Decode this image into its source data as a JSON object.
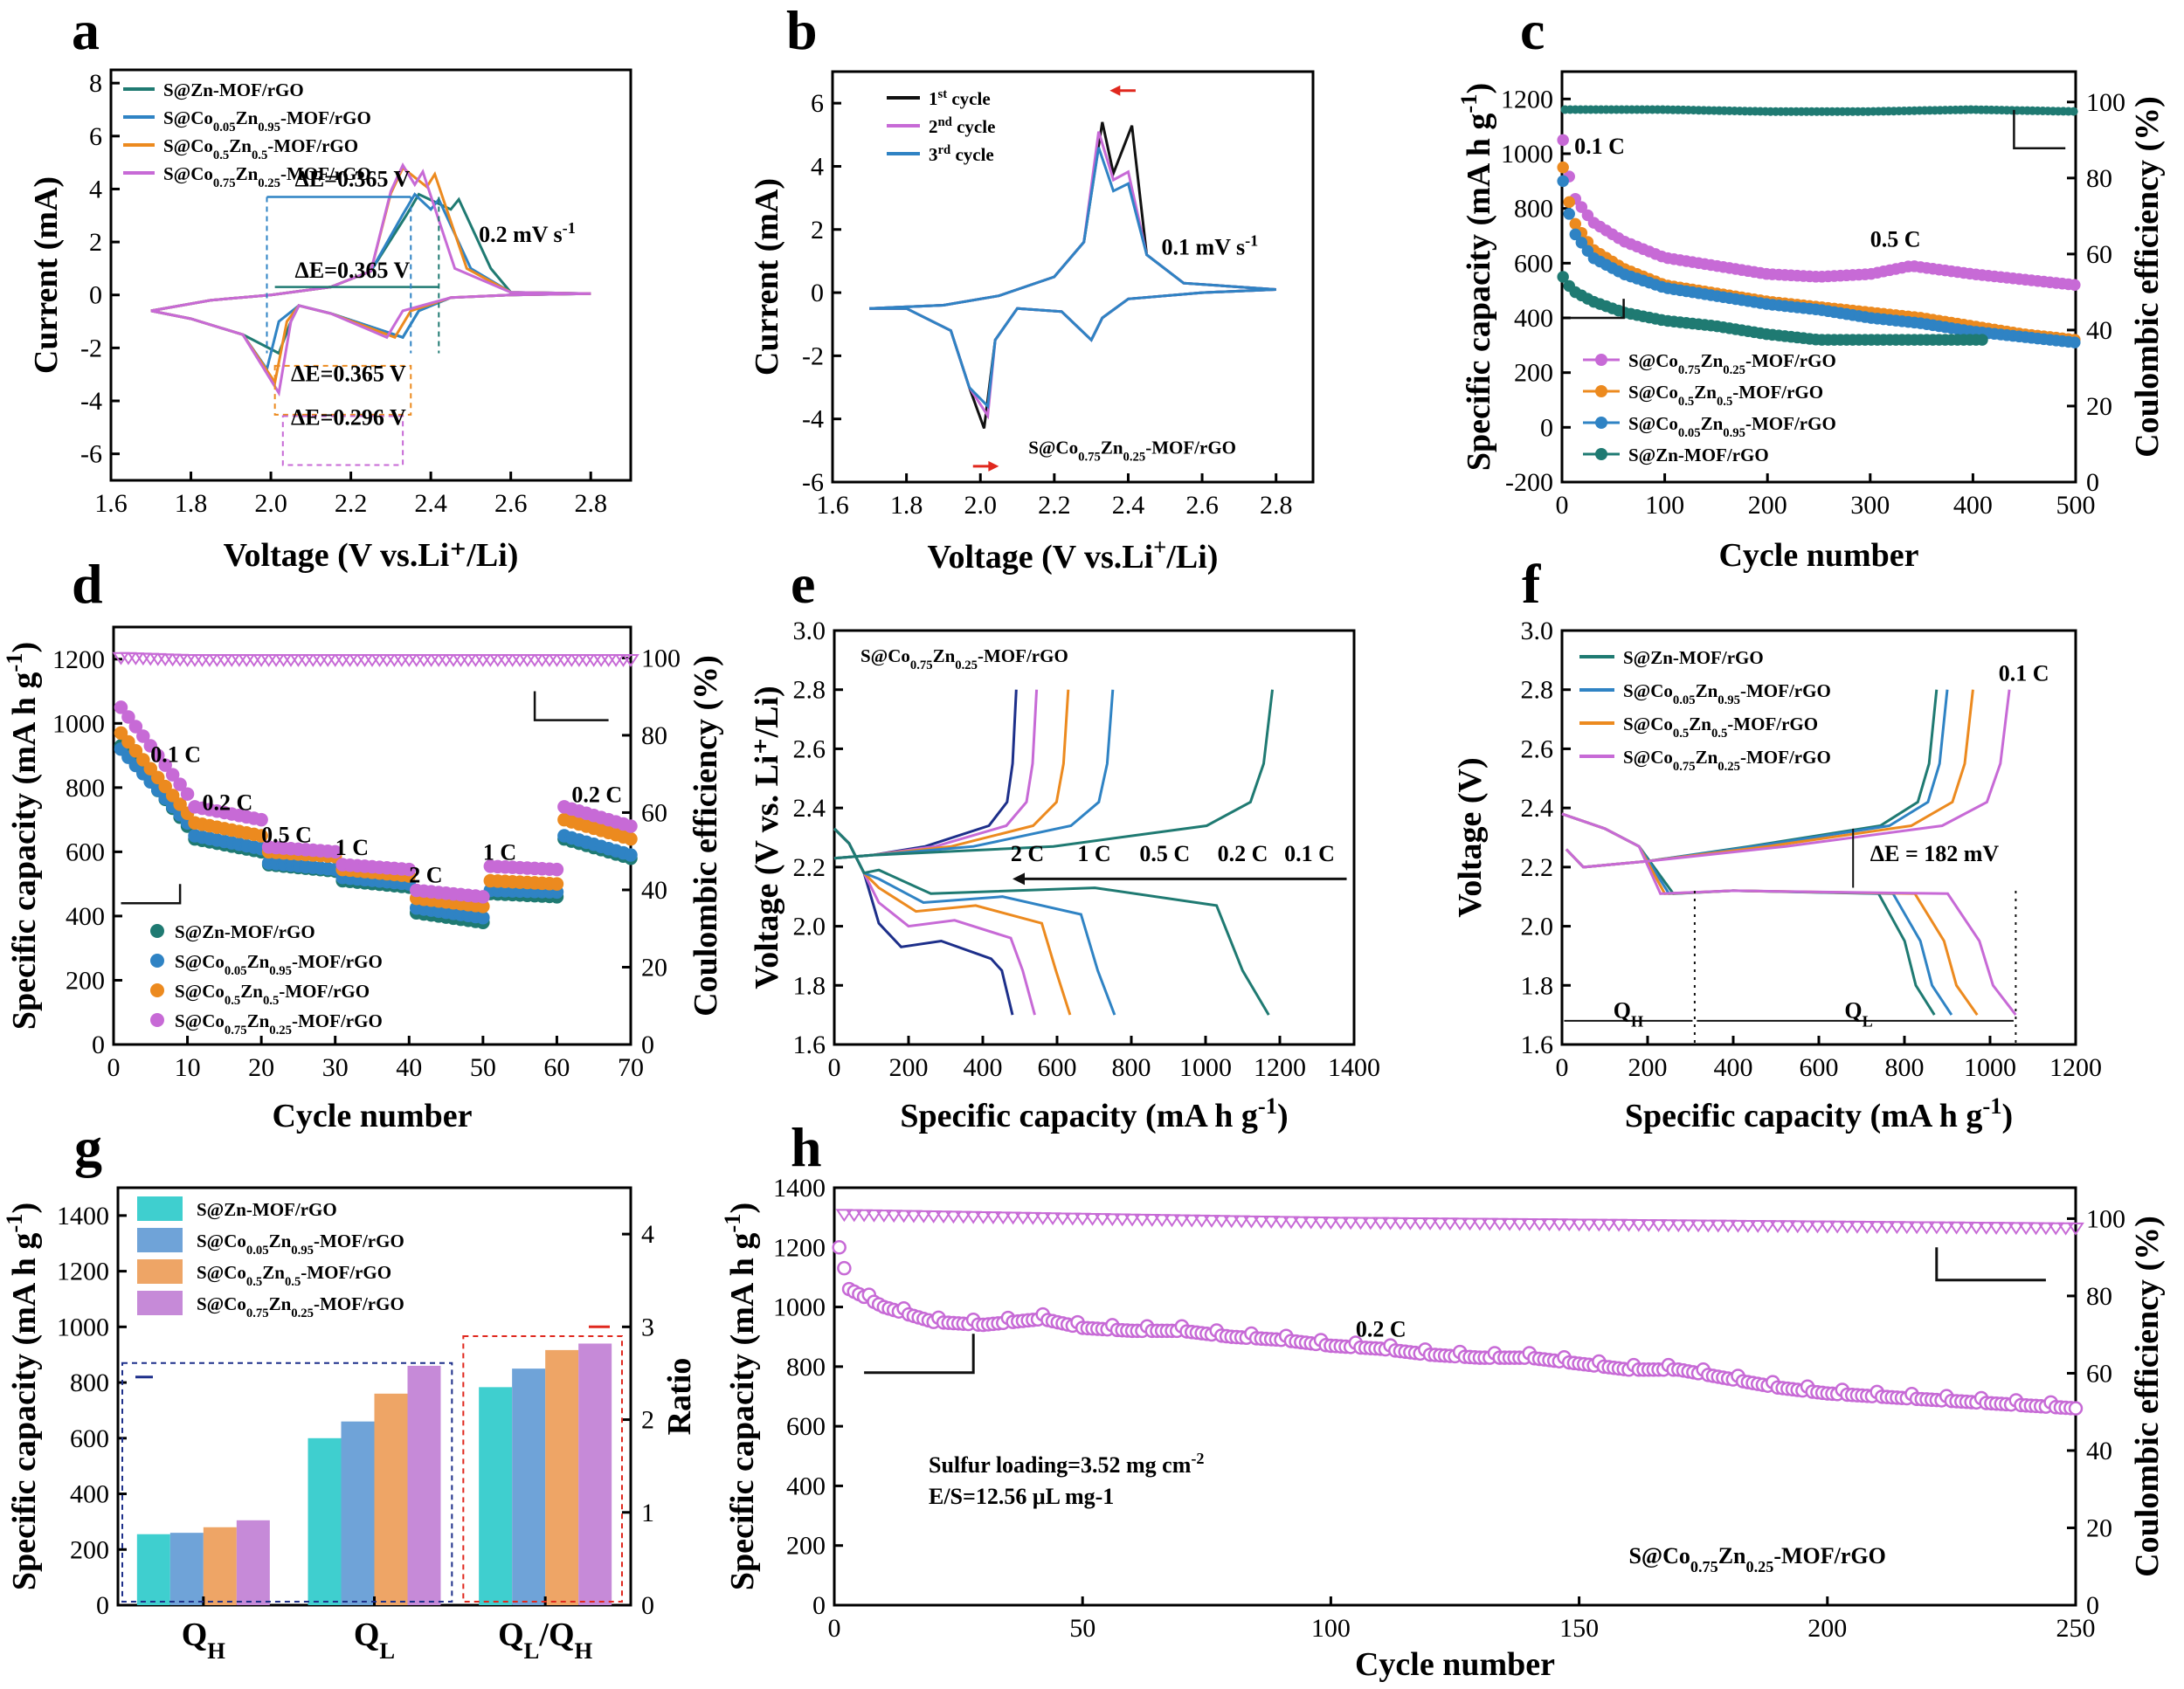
{
  "colors": {
    "zn": "#1f7a72",
    "co005": "#2f83c4",
    "co05": "#ec8a1f",
    "co075": "#c76ad6",
    "black": "#111111",
    "red": "#e0281e",
    "navy": "#1d2f8a",
    "teal_bar": "#3fcfcf",
    "blue_bar": "#6fa3d8",
    "orange_bar": "#eea566",
    "purple_bar": "#c68ad8"
  },
  "chart_data": [
    {
      "id": "a",
      "type": "line",
      "title": "",
      "xlabel": "Voltage (V vs.Li⁺/Li)",
      "ylabel": "Current (mA)",
      "xlim": [
        1.6,
        2.9
      ],
      "ylim": [
        -7,
        8.5
      ],
      "xticks": [
        "1.6",
        "1.8",
        "2.0",
        "2.2",
        "2.4",
        "2.6",
        "2.8"
      ],
      "yticks": [
        "-6",
        "-4",
        "-2",
        "0",
        "2",
        "4",
        "6",
        "8"
      ],
      "legend": [
        "S@Zn-MOF/rGO",
        "S@Co0.05Zn0.95-MOF/rGO",
        "S@Co0.5Zn0.5-MOF/rGO",
        "S@Co0.75Zn0.25-MOF/rGO"
      ],
      "annotations": [
        "0.2 mV s-1",
        "ΔE=0.365 V",
        "ΔE=0.365 V",
        "ΔE=0.365 V",
        "ΔE=0.296 V"
      ],
      "series": [
        {
          "name": "S@Zn-MOF/rGO",
          "peaks": {
            "oxidation": [
              2.37,
              2.47
            ],
            "reduction": [
              2.33,
              2.02
            ],
            "ox_current": 3.8,
            "red_current": -2.2
          }
        },
        {
          "name": "S@Co0.05Zn0.95-MOF/rGO",
          "peaks": {
            "oxidation": [
              2.36,
              2.42
            ],
            "reduction": [
              2.33,
              1.99
            ],
            "ox_current": 3.8,
            "red_current": -2.8
          }
        },
        {
          "name": "S@Co0.5Zn0.5-MOF/rGO",
          "peaks": {
            "oxidation": [
              2.33,
              2.41
            ],
            "reduction": [
              2.31,
              2.01
            ],
            "ox_current": 4.8,
            "red_current": -3.3
          }
        },
        {
          "name": "S@Co0.75Zn0.25-MOF/rGO",
          "peaks": {
            "oxidation": [
              2.33,
              2.38
            ],
            "reduction": [
              2.29,
              2.02
            ],
            "ox_current": 4.9,
            "red_current": -3.7
          }
        }
      ]
    },
    {
      "id": "b",
      "type": "line",
      "xlabel": "Voltage (V vs.Li⁺/Li)",
      "ylabel": "Current (mA)",
      "xlim": [
        1.6,
        2.9
      ],
      "ylim": [
        -6,
        7
      ],
      "xticks": [
        "1.6",
        "1.8",
        "2.0",
        "2.2",
        "2.4",
        "2.6",
        "2.8"
      ],
      "yticks": [
        "-6",
        "-4",
        "-2",
        "0",
        "2",
        "4",
        "6"
      ],
      "legend": [
        "1st cycle",
        "2nd cycle",
        "3rd cycle"
      ],
      "annotations": [
        "0.1 mV s-1",
        "S@Co0.75Zn0.25-MOF/rGO"
      ],
      "series": [
        {
          "name": "1st cycle",
          "ox_peaks": [
            2.33,
            2.41
          ],
          "ox_current": 5.4,
          "red_peaks": [
            2.3,
            2.01
          ],
          "red_current": -4.3
        },
        {
          "name": "2nd cycle",
          "ox_peaks": [
            2.32,
            2.4
          ],
          "ox_current": 5.1,
          "red_peaks": [
            2.3,
            2.02
          ],
          "red_current": -3.9
        },
        {
          "name": "3rd cycle",
          "ox_peaks": [
            2.32,
            2.4
          ],
          "ox_current": 4.6,
          "red_peaks": [
            2.3,
            2.02
          ],
          "red_current": -3.6
        }
      ]
    },
    {
      "id": "c",
      "type": "scatter",
      "xlabel": "Cycle number",
      "ylabel": "Specific capacity (mA h g-1)",
      "y2label": "Coulombic efficiency (%)",
      "xlim": [
        0,
        500
      ],
      "ylim": [
        -200,
        1300
      ],
      "y2lim": [
        0,
        108
      ],
      "xticks": [
        "0",
        "100",
        "200",
        "300",
        "400",
        "500"
      ],
      "yticks": [
        "-200",
        "0",
        "200",
        "400",
        "600",
        "800",
        "1000",
        "1200"
      ],
      "y2ticks": [
        "0",
        "20",
        "40",
        "60",
        "80",
        "100"
      ],
      "annotations": [
        "0.1 C",
        "0.5 C"
      ],
      "legend": [
        "S@Co0.75Zn0.25-MOF/rGO",
        "S@Co0.5Zn0.5-MOF/rGO",
        "S@Co0.05Zn0.95-MOF/rGO",
        "S@Zn-MOF/rGO"
      ],
      "series": [
        {
          "name": "S@Co0.75Zn0.25-MOF/rGO",
          "x": [
            1,
            10,
            30,
            60,
            100,
            150,
            200,
            250,
            300,
            340,
            400,
            450,
            500
          ],
          "y": [
            1050,
            850,
            750,
            680,
            620,
            590,
            560,
            550,
            560,
            590,
            560,
            540,
            520
          ]
        },
        {
          "name": "S@Co0.5Zn0.5-MOF/rGO",
          "x": [
            1,
            10,
            30,
            60,
            100,
            150,
            200,
            250,
            300,
            350,
            400,
            450,
            500
          ],
          "y": [
            950,
            760,
            650,
            580,
            520,
            490,
            460,
            440,
            420,
            400,
            370,
            340,
            320
          ]
        },
        {
          "name": "S@Co0.05Zn0.95-MOF/rGO",
          "x": [
            1,
            10,
            30,
            60,
            100,
            150,
            200,
            250,
            300,
            350,
            400,
            450,
            500
          ],
          "y": [
            900,
            720,
            620,
            560,
            510,
            480,
            450,
            430,
            400,
            380,
            350,
            330,
            310
          ]
        },
        {
          "name": "S@Zn-MOF/rGO",
          "x": [
            1,
            10,
            30,
            60,
            100,
            150,
            200,
            250,
            300,
            350,
            410
          ],
          "y": [
            550,
            500,
            460,
            420,
            390,
            370,
            340,
            320,
            320,
            320,
            320
          ]
        }
      ],
      "ce": {
        "x": [
          5,
          100,
          200,
          300,
          400,
          500
        ],
        "y": [
          98,
          98,
          97.5,
          97.5,
          98,
          97.5
        ]
      }
    },
    {
      "id": "d",
      "type": "scatter",
      "xlabel": "Cycle number",
      "ylabel": "Specific capacity (mA h g-1)",
      "y2label": "Coulombic efficiency (%)",
      "xlim": [
        0,
        70
      ],
      "ylim": [
        0,
        1300
      ],
      "y2lim": [
        0,
        108
      ],
      "xticks": [
        "0",
        "10",
        "20",
        "30",
        "40",
        "50",
        "60",
        "70"
      ],
      "yticks": [
        "0",
        "200",
        "400",
        "600",
        "800",
        "1000",
        "1200"
      ],
      "y2ticks": [
        "0",
        "20",
        "40",
        "60",
        "80",
        "100"
      ],
      "rate_labels": [
        "0.1 C",
        "0.2 C",
        "0.5 C",
        "1 C",
        "2 C",
        "1 C",
        "0.2 C"
      ],
      "legend": [
        "S@Zn-MOF/rGO",
        "S@Co0.05Zn0.95-MOF/rGO",
        "S@Co0.5Zn0.5-MOF/rGO",
        "S@Co0.75Zn0.25-MOF/rGO"
      ],
      "series": [
        {
          "name": "S@Zn-MOF/rGO",
          "rates": [
            [
              930,
              680
            ],
            [
              640,
              600
            ],
            [
              560,
              540
            ],
            [
              510,
              490
            ],
            [
              410,
              380
            ],
            [
              470,
              460
            ],
            [
              640,
              580
            ]
          ]
        },
        {
          "name": "S@Co0.05Zn0.95-MOF/rGO",
          "rates": [
            [
              920,
              690
            ],
            [
              650,
              610
            ],
            [
              565,
              545
            ],
            [
              520,
              500
            ],
            [
              425,
              395
            ],
            [
              480,
              475
            ],
            [
              650,
              590
            ]
          ]
        },
        {
          "name": "S@Co0.5Zn0.5-MOF/rGO",
          "rates": [
            [
              970,
              720
            ],
            [
              690,
              650
            ],
            [
              600,
              585
            ],
            [
              545,
              525
            ],
            [
              455,
              430
            ],
            [
              510,
              500
            ],
            [
              700,
              640
            ]
          ]
        },
        {
          "name": "S@Co0.75Zn0.25-MOF/rGO",
          "rates": [
            [
              1050,
              780
            ],
            [
              740,
              700
            ],
            [
              615,
              600
            ],
            [
              560,
              545
            ],
            [
              480,
              460
            ],
            [
              555,
              545
            ],
            [
              740,
              680
            ]
          ]
        }
      ],
      "ce": {
        "x": [
          2,
          10,
          20,
          30,
          40,
          50,
          60,
          70
        ],
        "y": [
          100,
          99.5,
          99.5,
          99.5,
          99.5,
          99.5,
          99.5,
          99.5
        ]
      }
    },
    {
      "id": "e",
      "type": "line",
      "xlabel": "Specific capacity (mA h g-1)",
      "ylabel": "Voltage (V vs. Li⁺/Li)",
      "xlim": [
        0,
        1400
      ],
      "ylim": [
        1.6,
        3.0
      ],
      "xticks": [
        "0",
        "200",
        "400",
        "600",
        "800",
        "1000",
        "1200",
        "1400"
      ],
      "yticks": [
        "1.6",
        "1.8",
        "2.0",
        "2.2",
        "2.4",
        "2.6",
        "2.8",
        "3.0"
      ],
      "title": "S@Co0.75Zn0.25-MOF/rGO",
      "series": [
        {
          "name": "2 C",
          "discharge_end": 480,
          "charge_end": 490,
          "lower_plateau": 1.93
        },
        {
          "name": "1 C",
          "discharge_end": 540,
          "charge_end": 545,
          "lower_plateau": 2.0
        },
        {
          "name": "0.5 C",
          "discharge_end": 635,
          "charge_end": 630,
          "lower_plateau": 2.05
        },
        {
          "name": "0.2 C",
          "discharge_end": 755,
          "charge_end": 750,
          "lower_plateau": 2.08
        },
        {
          "name": "0.1 C",
          "discharge_end": 1170,
          "charge_end": 1180,
          "lower_plateau": 2.11
        }
      ]
    },
    {
      "id": "f",
      "type": "line",
      "xlabel": "Specific capacity (mA h g-1)",
      "ylabel": "Voltage (V)",
      "xlim": [
        0,
        1200
      ],
      "ylim": [
        1.6,
        3.0
      ],
      "xticks": [
        "0",
        "200",
        "400",
        "600",
        "800",
        "1000",
        "1200"
      ],
      "yticks": [
        "1.6",
        "1.8",
        "2.0",
        "2.2",
        "2.4",
        "2.6",
        "2.8",
        "3.0"
      ],
      "annotations": [
        "0.1 C",
        "ΔE = 182 mV",
        "QH",
        "QL"
      ],
      "legend": [
        "S@Zn-MOF/rGO",
        "S@Co0.05Zn0.95-MOF/rGO",
        "S@Co0.5Zn0.5-MOF/rGO",
        "S@Co0.75Zn0.25-MOF/rGO"
      ],
      "series": [
        {
          "name": "S@Zn-MOF/rGO",
          "discharge_end": 870,
          "charge_end": 875
        },
        {
          "name": "S@Co0.05Zn0.95-MOF/rGO",
          "discharge_end": 910,
          "charge_end": 900
        },
        {
          "name": "S@Co0.5Zn0.5-MOF/rGO",
          "discharge_end": 970,
          "charge_end": 960
        },
        {
          "name": "S@Co0.75Zn0.25-MOF/rGO",
          "discharge_end": 1060,
          "charge_end": 1045
        }
      ]
    },
    {
      "id": "g",
      "type": "bar",
      "xlabel": "",
      "ylabel": "Specific capacity (mA h g-1)",
      "y2label": "Ratio",
      "ylim": [
        0,
        1500
      ],
      "y2lim": [
        0,
        4.5
      ],
      "categories": [
        "QH",
        "QL",
        "QL/QH"
      ],
      "yticks": [
        "0",
        "200",
        "400",
        "600",
        "800",
        "1000",
        "1200",
        "1400"
      ],
      "y2ticks": [
        "0",
        "1",
        "2",
        "3",
        "4"
      ],
      "series": [
        {
          "name": "S@Zn-MOF/rGO",
          "values": [
            255,
            600,
            2.35
          ]
        },
        {
          "name": "S@Co0.05Zn0.95-MOF/rGO",
          "values": [
            260,
            660,
            2.55
          ]
        },
        {
          "name": "S@Co0.5Zn0.5-MOF/rGO",
          "values": [
            280,
            760,
            2.75
          ]
        },
        {
          "name": "S@Co0.75Zn0.25-MOF/rGO",
          "values": [
            305,
            860,
            2.82
          ]
        }
      ]
    },
    {
      "id": "h",
      "type": "scatter",
      "xlabel": "Cycle number",
      "ylabel": "Specific capacity (mA h g-1)",
      "y2label": "Coulombic efficiency (%)",
      "xlim": [
        0,
        250
      ],
      "ylim": [
        0,
        1400
      ],
      "y2lim": [
        0,
        108
      ],
      "xticks": [
        "0",
        "50",
        "100",
        "150",
        "200",
        "250"
      ],
      "yticks": [
        "0",
        "200",
        "400",
        "600",
        "800",
        "1000",
        "1200",
        "1400"
      ],
      "y2ticks": [
        "0",
        "20",
        "40",
        "60",
        "80",
        "100"
      ],
      "annotations": [
        "0.2 C",
        "Sulfur loading=3.52 mg cm-2",
        "E/S=12.56 μL mg-1",
        "S@Co0.75Zn0.25-MOF/rGO"
      ],
      "series": [
        {
          "name": "capacity",
          "x": [
            1,
            3,
            10,
            20,
            30,
            42,
            50,
            60,
            70,
            80,
            90,
            100,
            110,
            120,
            130,
            140,
            150,
            160,
            170,
            180,
            190,
            200,
            210,
            220,
            230,
            240,
            250
          ],
          "y": [
            1200,
            1060,
            1000,
            950,
            940,
            960,
            930,
            920,
            920,
            900,
            890,
            870,
            860,
            840,
            830,
            830,
            810,
            790,
            790,
            760,
            730,
            710,
            700,
            690,
            680,
            670,
            660
          ]
        }
      ],
      "ce": {
        "x": [
          2,
          50,
          100,
          150,
          200,
          250
        ],
        "y": [
          101,
          100,
          99,
          98.5,
          98,
          97.5
        ]
      }
    }
  ]
}
